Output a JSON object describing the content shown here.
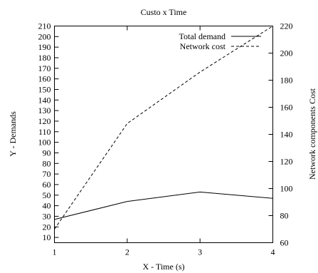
{
  "chart_data": {
    "type": "line",
    "title": "Custo x Time",
    "xlabel": "X - Time (s)",
    "ylabel": "Y - Demands",
    "y2label": "Network components Cost",
    "xlim": [
      1,
      4
    ],
    "ylim": [
      5,
      210
    ],
    "y2lim": [
      60,
      220
    ],
    "xticks": [
      1,
      2,
      3,
      4
    ],
    "yticks": [
      10,
      20,
      30,
      40,
      50,
      60,
      70,
      80,
      90,
      100,
      110,
      120,
      130,
      140,
      150,
      160,
      170,
      180,
      190,
      200,
      210
    ],
    "y2ticks": [
      60,
      80,
      100,
      120,
      140,
      160,
      180,
      200,
      220
    ],
    "grid": false,
    "legend_position": "top-right",
    "series": [
      {
        "name": "Total demand",
        "axis": "left",
        "style": "solid",
        "color": "#000000",
        "x": [
          1,
          2,
          3,
          4
        ],
        "values": [
          27,
          44,
          53,
          47
        ]
      },
      {
        "name": "Network cost",
        "axis": "right",
        "style": "dashed",
        "color": "#000000",
        "x": [
          1,
          2,
          3,
          4
        ],
        "values": [
          70,
          148,
          186,
          220
        ]
      }
    ]
  }
}
